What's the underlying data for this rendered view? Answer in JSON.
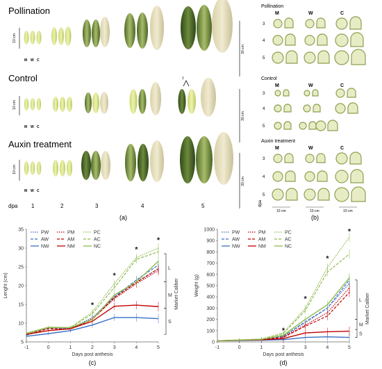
{
  "panel_a": {
    "sections": [
      {
        "title": "Pollination",
        "scale": "10 cm",
        "scale_right": "30 cm"
      },
      {
        "title": "Control",
        "scale": "10 cm",
        "scale_right": "30 cm"
      },
      {
        "title": "Auxin treatment",
        "scale": "10 cm",
        "scale_right": "30 cm"
      }
    ],
    "mwc": [
      "M",
      "W",
      "C"
    ],
    "dpa_label": "dpa",
    "dpa_values": [
      "1",
      "2",
      "3",
      "4",
      "5"
    ],
    "arrow_label": "1",
    "caption": "(a)"
  },
  "panel_b": {
    "sections": [
      {
        "title": "Pollination"
      },
      {
        "title": "Control"
      },
      {
        "title": "Auxin treatment"
      }
    ],
    "columns": [
      "M",
      "W",
      "C"
    ],
    "rows": [
      "3",
      "4",
      "5"
    ],
    "dpa_label": "dpa",
    "scale_labels": [
      "10 cm",
      "10 cm",
      "10 cm"
    ],
    "caption": "(b)"
  },
  "chart_data": [
    {
      "type": "line",
      "caption": "(c)",
      "xlabel": "Days post anthesis",
      "ylabel": "Lenght (cm)",
      "x": [
        -1,
        0,
        1,
        2,
        3,
        4,
        5
      ],
      "xlim": [
        -1,
        5
      ],
      "ylim": [
        5,
        35
      ],
      "yticks": [
        5,
        10,
        15,
        20,
        25,
        30,
        35
      ],
      "series": [
        {
          "name": "PW",
          "color": "#3a6fc4",
          "dash": "dot",
          "values": [
            6.8,
            8.8,
            8.6,
            11.5,
            17.0,
            21.0,
            24.5
          ]
        },
        {
          "name": "PM",
          "color": "#c00000",
          "dash": "dot",
          "values": [
            7.0,
            8.6,
            8.5,
            11.2,
            16.5,
            20.5,
            24.0
          ]
        },
        {
          "name": "PC",
          "color": "#8db94a",
          "dash": "dot",
          "values": [
            7.2,
            8.7,
            8.8,
            13.0,
            20.5,
            27.5,
            30.0
          ]
        },
        {
          "name": "AW",
          "color": "#3a6fc4",
          "dash": "dash",
          "values": [
            6.8,
            8.6,
            8.5,
            11.0,
            17.0,
            21.5,
            25.5
          ]
        },
        {
          "name": "AM",
          "color": "#c00000",
          "dash": "dash",
          "values": [
            7.0,
            8.5,
            8.4,
            11.0,
            16.8,
            20.8,
            24.5
          ]
        },
        {
          "name": "AC",
          "color": "#8db94a",
          "dash": "dash",
          "values": [
            7.1,
            8.8,
            8.8,
            12.5,
            19.5,
            27.0,
            29.0
          ]
        },
        {
          "name": "NW",
          "color": "#3a6fc4",
          "dash": "solid",
          "values": [
            6.5,
            7.2,
            8.0,
            9.5,
            11.5,
            11.5,
            11.2
          ]
        },
        {
          "name": "NM",
          "color": "#c00000",
          "dash": "solid",
          "values": [
            7.0,
            8.0,
            8.5,
            10.5,
            14.5,
            14.8,
            14.4
          ]
        },
        {
          "name": "NC",
          "color": "#8db94a",
          "dash": "solid",
          "values": [
            7.3,
            8.9,
            8.8,
            11.0,
            17.5,
            21.0,
            26.5
          ]
        }
      ],
      "annotations": [
        {
          "x": 2,
          "y": 14.2,
          "text": "*"
        },
        {
          "x": 3,
          "y": 22.0,
          "text": "*"
        },
        {
          "x": 4,
          "y": 29.0,
          "text": "*"
        },
        {
          "x": 5,
          "y": 31.5,
          "text": "*"
        }
      ],
      "caliber": {
        "label": "Market Caliber",
        "bands": [
          {
            "label": "S",
            "from": 7.0,
            "to": 14.0
          },
          {
            "label": "M",
            "from": 14.0,
            "to": 21.0
          },
          {
            "label": "L",
            "from": 21.0,
            "to": 28.5
          }
        ]
      },
      "legend": "top-left"
    },
    {
      "type": "line",
      "caption": "(d)",
      "xlabel": "Days post anthesis",
      "ylabel": "Weight (g)",
      "x": [
        -1,
        0,
        1,
        2,
        3,
        4,
        5
      ],
      "xlim": [
        -1,
        5
      ],
      "ylim": [
        0,
        1000
      ],
      "yticks": [
        0,
        100,
        200,
        300,
        400,
        500,
        600,
        700,
        800,
        900,
        1000
      ],
      "series": [
        {
          "name": "PW",
          "color": "#3a6fc4",
          "dash": "dot",
          "values": [
            10,
            15,
            20,
            50,
            170,
            300,
            520
          ]
        },
        {
          "name": "PM",
          "color": "#c00000",
          "dash": "dot",
          "values": [
            10,
            15,
            20,
            45,
            150,
            260,
            480
          ]
        },
        {
          "name": "PC",
          "color": "#8db94a",
          "dash": "dot",
          "values": [
            10,
            18,
            25,
            80,
            300,
            660,
            930
          ]
        },
        {
          "name": "AW",
          "color": "#3a6fc4",
          "dash": "dash",
          "values": [
            10,
            15,
            20,
            50,
            180,
            300,
            550
          ]
        },
        {
          "name": "AM",
          "color": "#c00000",
          "dash": "dash",
          "values": [
            10,
            15,
            20,
            40,
            140,
            230,
            440
          ]
        },
        {
          "name": "AC",
          "color": "#8db94a",
          "dash": "dash",
          "values": [
            10,
            18,
            25,
            75,
            280,
            620,
            780
          ]
        },
        {
          "name": "NW",
          "color": "#3a6fc4",
          "dash": "solid",
          "values": [
            10,
            12,
            15,
            20,
            40,
            45,
            40
          ]
        },
        {
          "name": "NM",
          "color": "#c00000",
          "dash": "solid",
          "values": [
            10,
            14,
            18,
            30,
            80,
            90,
            95
          ]
        },
        {
          "name": "NC",
          "color": "#8db94a",
          "dash": "solid",
          "values": [
            10,
            16,
            22,
            60,
            200,
            330,
            570
          ]
        }
      ],
      "annotations": [
        {
          "x": 2,
          "y": 80,
          "text": "*"
        },
        {
          "x": 3,
          "y": 360,
          "text": "*"
        },
        {
          "x": 4,
          "y": 720,
          "text": "*"
        },
        {
          "x": 5,
          "y": 960,
          "text": "*"
        }
      ],
      "caliber": {
        "label": "Market Caliber",
        "bands": [
          {
            "label": "S",
            "from": 40,
            "to": 110
          },
          {
            "label": "M",
            "from": 110,
            "to": 200
          },
          {
            "label": "L",
            "from": 200,
            "to": 550
          }
        ]
      },
      "legend": "top-left"
    }
  ]
}
